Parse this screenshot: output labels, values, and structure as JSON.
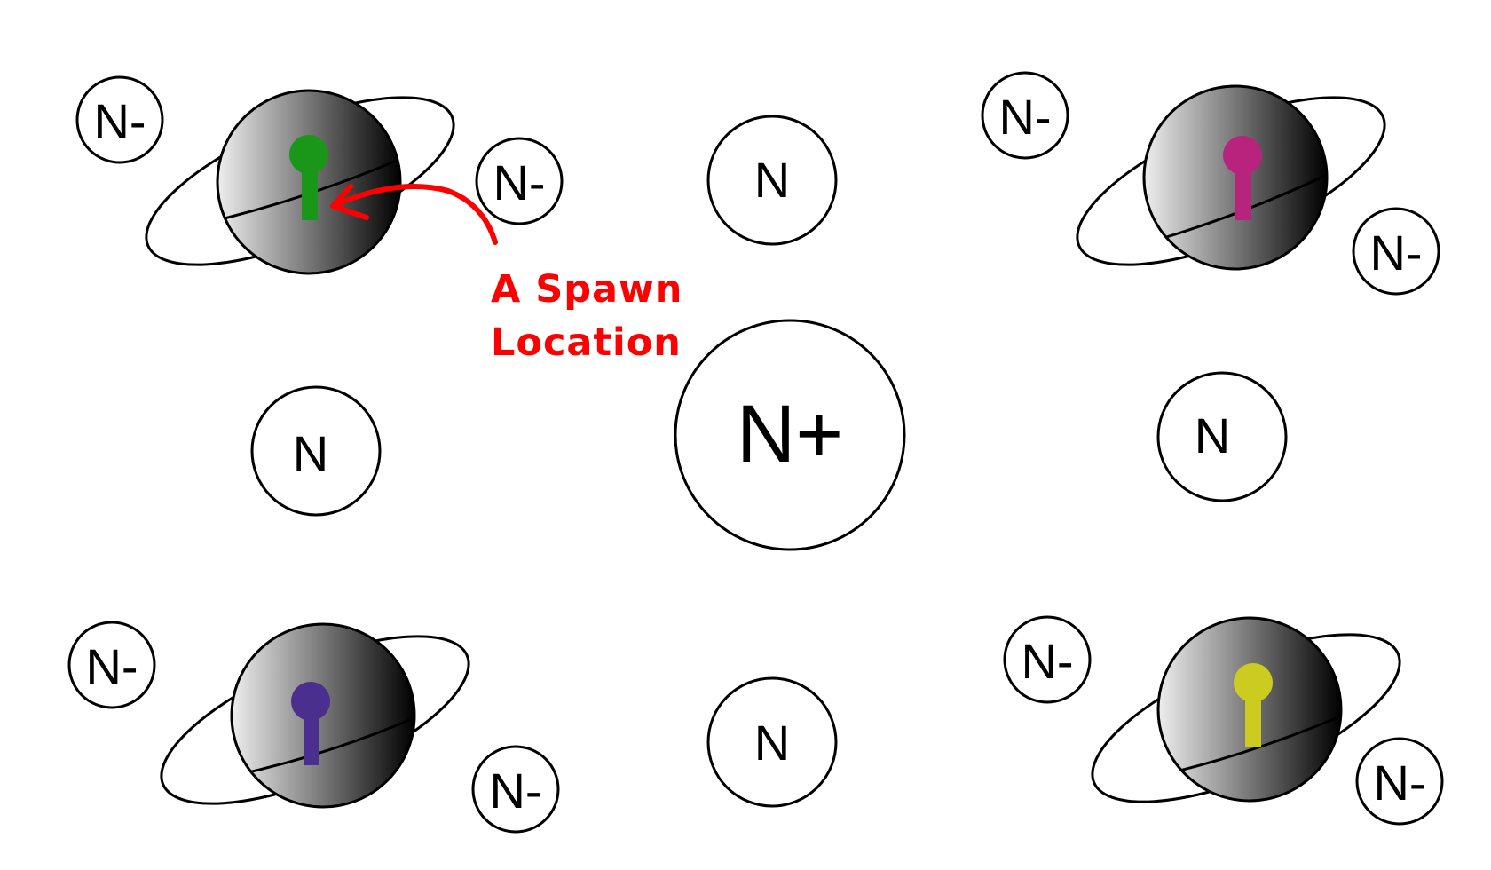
{
  "colors": {
    "background": "#ffffff",
    "stroke": "#000000",
    "annotation": "#ff0000",
    "planet_light": "#eeeeee",
    "planet_dark": "#000000"
  },
  "nodes": {
    "center": "N+",
    "top_left": "N-",
    "top_left_right": "N-",
    "top_middle": "N",
    "top_right_left": "N-",
    "top_right_below": "N-",
    "middle_left": "N",
    "middle_right": "N",
    "bottom_left_left": "N-",
    "bottom_left_right": "N-",
    "bottom_middle": "N",
    "bottom_right_left": "N-",
    "bottom_right_below": "N-"
  },
  "planets": [
    {
      "marker_color": "#1a9618",
      "marker_icon": "keyhole-marker"
    },
    {
      "marker_color": "#b8237e",
      "marker_icon": "keyhole-marker"
    },
    {
      "marker_color": "#4b2f8f",
      "marker_icon": "keyhole-marker"
    },
    {
      "marker_color": "#cccc20",
      "marker_icon": "keyhole-marker"
    }
  ],
  "annotation": {
    "line1": "A Spawn",
    "line2": "Location",
    "icon": "curved-arrow-icon"
  }
}
